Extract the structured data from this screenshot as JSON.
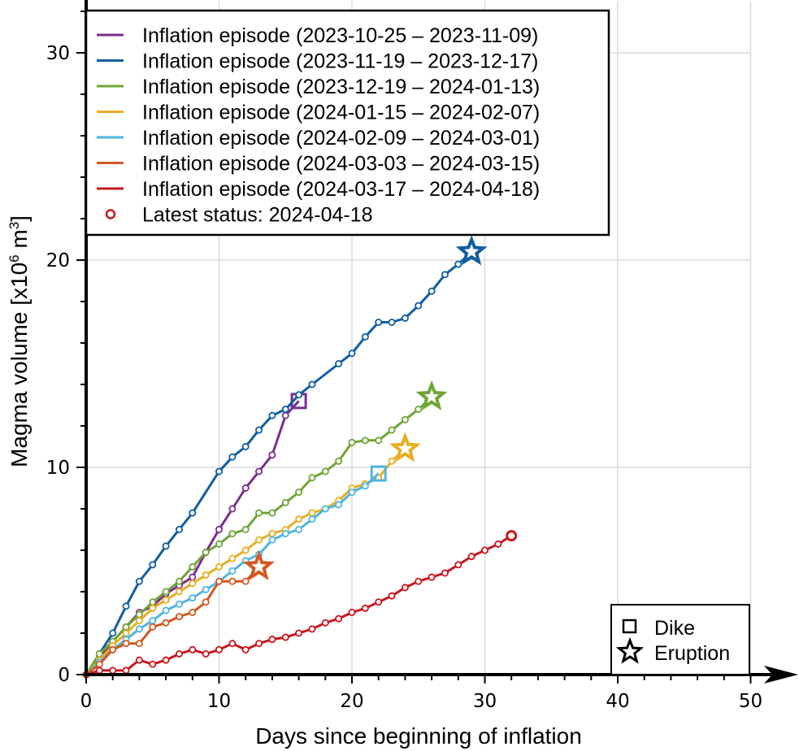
{
  "chart_data": {
    "type": "line",
    "title": "",
    "xlabel": "Days since beginning of inflation",
    "ylabel_parts": {
      "prefix": "Magma volume [x10",
      "sup1": "6",
      "mid": " m",
      "sup2": "3",
      "suffix": "]"
    },
    "ylabel": "Magma volume [x10^6 m^3]",
    "xlim": [
      0,
      50
    ],
    "ylim": [
      0,
      32.5
    ],
    "xticks": [
      0,
      10,
      20,
      30,
      40,
      50
    ],
    "xtick_labels": [
      "0",
      "10",
      "20",
      "30",
      "40",
      "50"
    ],
    "yticks": [
      0,
      10,
      20,
      30
    ],
    "ytick_labels": [
      "0",
      "10",
      "20",
      "30"
    ],
    "x_minor_step": 2,
    "y_minor_step": 2,
    "grid": true,
    "legend_placement": "top-left",
    "series": [
      {
        "name": "Inflation episode (2023-10-25 – 2023-11-09)",
        "color": "#7b2d8e",
        "x": [
          0,
          1,
          2,
          3,
          4,
          5,
          6,
          7,
          8,
          9,
          10,
          11,
          12,
          13,
          14,
          15
        ],
        "y": [
          0,
          0.8,
          1.6,
          2.3,
          3.0,
          3.3,
          3.9,
          4.3,
          4.7,
          5.9,
          7.0,
          8.0,
          9.0,
          9.8,
          10.6,
          12.5
        ],
        "end_marker": {
          "type": "dike",
          "x": 16,
          "y": 13.2
        }
      },
      {
        "name": "Inflation episode (2023-11-19 – 2023-12-17)",
        "color": "#105ea2",
        "x": [
          0,
          1,
          2,
          3,
          4,
          5,
          6,
          7,
          8,
          10,
          11,
          12,
          13,
          14,
          15,
          16,
          17,
          19,
          20,
          21,
          22,
          23,
          24,
          25,
          26,
          27,
          28
        ],
        "y": [
          0,
          1.0,
          2.0,
          3.3,
          4.5,
          5.3,
          6.2,
          7.0,
          7.8,
          9.8,
          10.5,
          11.0,
          11.8,
          12.5,
          12.8,
          13.5,
          14.0,
          15.0,
          15.5,
          16.3,
          17.0,
          17.0,
          17.2,
          17.8,
          18.5,
          19.3,
          19.8
        ],
        "end_marker": {
          "type": "eruption",
          "x": 29,
          "y": 20.4
        }
      },
      {
        "name": "Inflation episode (2023-12-19 – 2024-01-13)",
        "color": "#6ea536",
        "x": [
          0,
          1,
          2,
          3,
          4,
          5,
          6,
          7,
          8,
          9,
          10,
          11,
          12,
          13,
          14,
          15,
          16,
          17,
          18,
          19,
          20,
          21,
          22,
          23,
          24,
          25
        ],
        "y": [
          0,
          1.0,
          1.6,
          2.3,
          2.9,
          3.5,
          4.0,
          4.5,
          5.2,
          5.9,
          6.3,
          6.8,
          7.0,
          7.8,
          7.8,
          8.3,
          8.8,
          9.5,
          9.8,
          10.3,
          11.2,
          11.3,
          11.3,
          11.8,
          12.3,
          12.8
        ],
        "end_marker": {
          "type": "eruption",
          "x": 26,
          "y": 13.4
        }
      },
      {
        "name": "Inflation episode (2024-01-15 – 2024-02-07)",
        "color": "#e8ae22",
        "x": [
          0,
          1,
          2,
          3,
          4,
          5,
          6,
          7,
          8,
          9,
          10,
          11,
          12,
          13,
          14,
          15,
          16,
          17,
          18,
          19,
          20,
          21,
          22,
          23
        ],
        "y": [
          0,
          0.7,
          1.4,
          2.0,
          2.6,
          3.2,
          3.6,
          4.0,
          4.4,
          4.8,
          5.2,
          5.6,
          6.0,
          6.5,
          6.8,
          7.0,
          7.5,
          7.8,
          8.0,
          8.4,
          9.0,
          9.2,
          9.5,
          10.3
        ],
        "end_marker": {
          "type": "eruption",
          "x": 24,
          "y": 10.9
        }
      },
      {
        "name": "Inflation episode (2024-02-09 – 2024-03-01)",
        "color": "#4fb5dd",
        "x": [
          0,
          1,
          2,
          3,
          4,
          5,
          6,
          7,
          8,
          9,
          10,
          11,
          12,
          13,
          14,
          15,
          16,
          17,
          18,
          19,
          20,
          21
        ],
        "y": [
          0,
          0.6,
          1.2,
          1.7,
          2.2,
          2.6,
          3.1,
          3.4,
          3.7,
          4.1,
          4.5,
          5.0,
          5.5,
          5.8,
          6.5,
          6.8,
          7.0,
          7.5,
          8.0,
          8.2,
          8.8,
          9.1
        ],
        "end_marker": {
          "type": "dike",
          "x": 22,
          "y": 9.7
        }
      },
      {
        "name": "Inflation episode (2024-03-03 – 2024-03-15)",
        "color": "#d3581f",
        "x": [
          0,
          1,
          2,
          3,
          4,
          5,
          6,
          7,
          8,
          9,
          10,
          11,
          12
        ],
        "y": [
          0,
          0.5,
          1.2,
          1.5,
          1.5,
          2.3,
          2.5,
          2.8,
          3.0,
          3.5,
          4.5,
          4.5,
          4.5
        ],
        "end_marker": {
          "type": "eruption",
          "x": 13,
          "y": 5.2
        }
      },
      {
        "name": "Inflation episode (2024-03-17 – 2024-04-18)",
        "color": "#c8161e",
        "x": [
          0,
          1,
          2,
          3,
          4,
          5,
          6,
          7,
          8,
          9,
          10,
          11,
          12,
          13,
          14,
          15,
          16,
          17,
          18,
          19,
          20,
          21,
          22,
          23,
          24,
          25,
          26,
          27,
          28,
          29,
          30,
          31
        ],
        "y": [
          0,
          0.2,
          0.2,
          0.2,
          0.7,
          0.5,
          0.7,
          1.0,
          1.2,
          1.0,
          1.2,
          1.5,
          1.2,
          1.5,
          1.7,
          1.8,
          2.0,
          2.2,
          2.5,
          2.7,
          3.0,
          3.2,
          3.5,
          3.8,
          4.2,
          4.5,
          4.7,
          4.9,
          5.3,
          5.7,
          6.0,
          6.3
        ],
        "end_marker": {
          "type": "latest",
          "x": 32,
          "y": 6.7
        }
      }
    ],
    "legend_entries": [
      "Inflation episode (2023-10-25 – 2023-11-09)",
      "Inflation episode (2023-11-19 – 2023-12-17)",
      "Inflation episode (2023-12-19 – 2024-01-13)",
      "Inflation episode (2024-01-15 – 2024-02-07)",
      "Inflation episode (2024-02-09 – 2024-03-01)",
      "Inflation episode (2024-03-03 – 2024-03-15)",
      "Inflation episode (2024-03-17 – 2024-04-18)",
      "Latest status: 2024-04-18"
    ],
    "latest_status": {
      "label": "Latest status: 2024-04-18",
      "color": "#c8161e"
    },
    "marker_legend": {
      "placement": "bottom-right",
      "entries": [
        {
          "symbol": "square",
          "label": "Dike"
        },
        {
          "symbol": "star",
          "label": "Eruption"
        }
      ]
    }
  }
}
